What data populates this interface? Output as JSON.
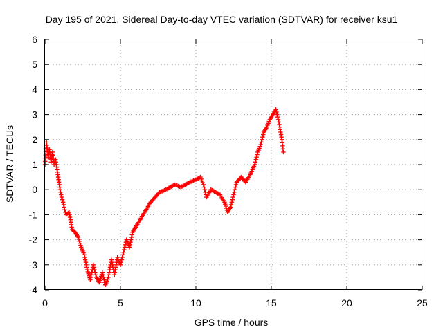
{
  "chart_data": {
    "type": "scatter",
    "title": "Day 195 of 2021, Sidereal Day-to-day VTEC variation (SDTVAR) for receiver ksu1",
    "xlabel": "GPS time / hours",
    "ylabel": "SDTVAR / TECUs",
    "xlim": [
      0,
      25
    ],
    "ylim": [
      -4,
      6
    ],
    "xticks": [
      "0",
      "5",
      "10",
      "15",
      "20",
      "25"
    ],
    "yticks": [
      "-4",
      "-3",
      "-2",
      "-1",
      "0",
      "1",
      "2",
      "3",
      "4",
      "5",
      "6"
    ],
    "grid": true,
    "marker": "+",
    "series_color": "#ff0000",
    "series": [
      {
        "name": "SDTVAR",
        "trace": [
          [
            0.0,
            1.0
          ],
          [
            0.1,
            1.9
          ],
          [
            0.2,
            1.3
          ],
          [
            0.3,
            1.6
          ],
          [
            0.4,
            1.1
          ],
          [
            0.5,
            1.5
          ],
          [
            0.6,
            1.0
          ],
          [
            0.7,
            1.2
          ],
          [
            0.8,
            0.8
          ],
          [
            0.9,
            0.4
          ],
          [
            1.0,
            0.0
          ],
          [
            1.1,
            -0.3
          ],
          [
            1.2,
            -0.5
          ],
          [
            1.3,
            -0.8
          ],
          [
            1.4,
            -1.0
          ],
          [
            1.6,
            -0.9
          ],
          [
            1.8,
            -1.6
          ],
          [
            2.0,
            -1.7
          ],
          [
            2.2,
            -1.9
          ],
          [
            2.4,
            -2.3
          ],
          [
            2.6,
            -2.6
          ],
          [
            2.8,
            -3.2
          ],
          [
            3.0,
            -3.6
          ],
          [
            3.2,
            -3.0
          ],
          [
            3.4,
            -3.5
          ],
          [
            3.6,
            -3.7
          ],
          [
            3.8,
            -3.3
          ],
          [
            4.0,
            -3.8
          ],
          [
            4.2,
            -3.5
          ],
          [
            4.4,
            -2.8
          ],
          [
            4.6,
            -3.4
          ],
          [
            4.8,
            -2.7
          ],
          [
            5.0,
            -3.0
          ],
          [
            5.2,
            -2.5
          ],
          [
            5.4,
            -2.0
          ],
          [
            5.6,
            -2.3
          ],
          [
            5.8,
            -1.7
          ],
          [
            6.0,
            -1.5
          ],
          [
            6.3,
            -1.2
          ],
          [
            6.6,
            -0.9
          ],
          [
            7.0,
            -0.5
          ],
          [
            7.3,
            -0.3
          ],
          [
            7.6,
            -0.1
          ],
          [
            8.0,
            0.0
          ],
          [
            8.3,
            0.1
          ],
          [
            8.6,
            0.2
          ],
          [
            9.0,
            0.1
          ],
          [
            9.3,
            0.2
          ],
          [
            9.6,
            0.3
          ],
          [
            10.0,
            0.4
          ],
          [
            10.3,
            0.5
          ],
          [
            10.5,
            0.2
          ],
          [
            10.7,
            -0.3
          ],
          [
            11.0,
            0.0
          ],
          [
            11.3,
            -0.1
          ],
          [
            11.6,
            -0.2
          ],
          [
            11.9,
            -0.5
          ],
          [
            12.1,
            -0.9
          ],
          [
            12.3,
            -0.7
          ],
          [
            12.5,
            -0.2
          ],
          [
            12.7,
            0.3
          ],
          [
            13.0,
            0.5
          ],
          [
            13.3,
            0.3
          ],
          [
            13.6,
            0.6
          ],
          [
            13.9,
            1.0
          ],
          [
            14.1,
            1.5
          ],
          [
            14.3,
            1.8
          ],
          [
            14.5,
            2.3
          ],
          [
            14.7,
            2.5
          ],
          [
            14.9,
            2.8
          ],
          [
            15.1,
            3.0
          ],
          [
            15.3,
            3.2
          ],
          [
            15.5,
            2.7
          ],
          [
            15.7,
            2.0
          ],
          [
            15.8,
            1.5
          ]
        ]
      }
    ]
  }
}
